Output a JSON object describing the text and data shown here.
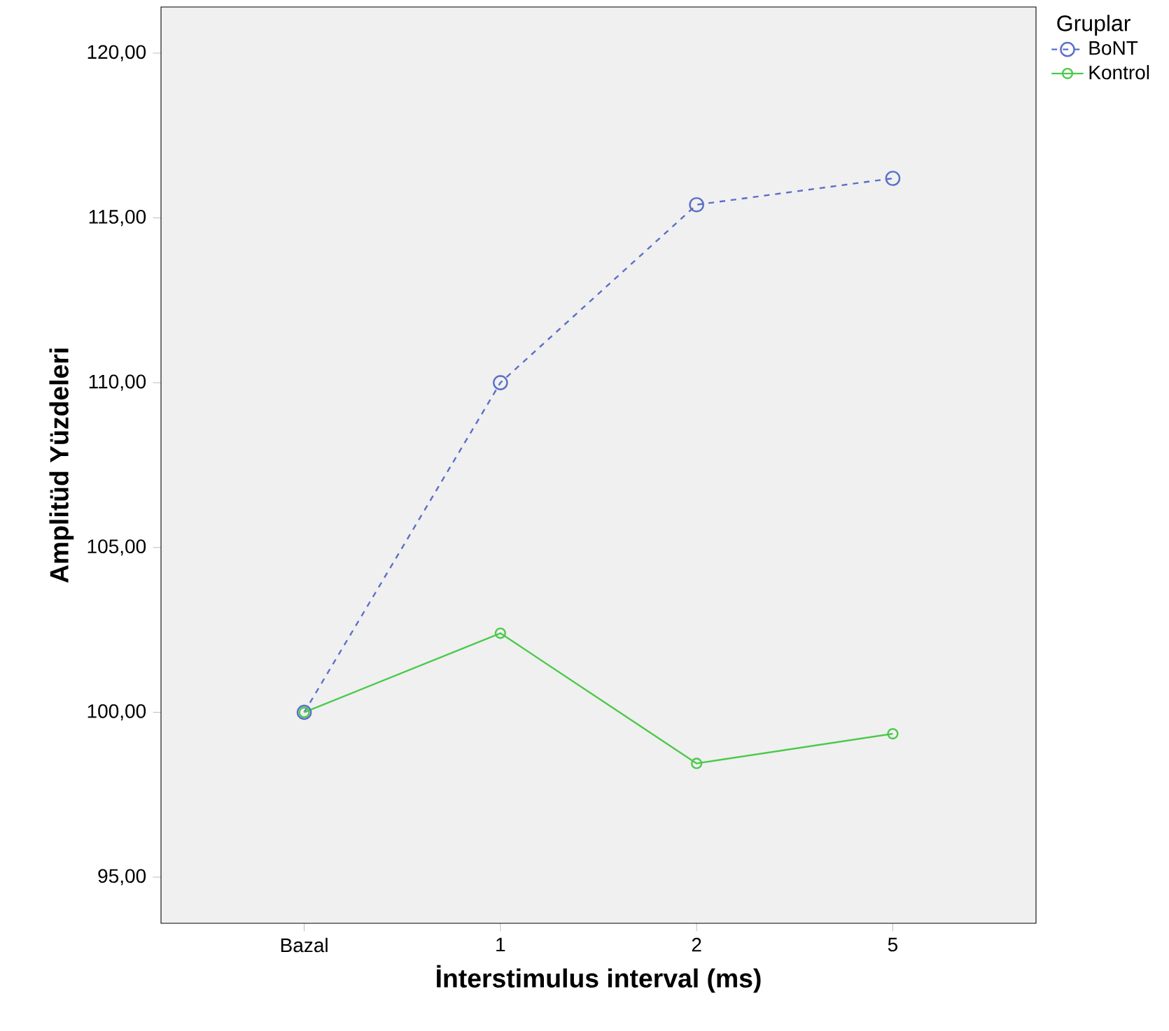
{
  "chart_data": {
    "type": "line",
    "xlabel": "İnterstimulus interval (ms)",
    "ylabel": "Amplitüd Yüzdeleri",
    "legend_title": "Gruplar",
    "categories": [
      "Bazal",
      "1",
      "2",
      "5"
    ],
    "series": [
      {
        "name": "BoNT",
        "color": "#5b6fc9",
        "line_style": "dashed",
        "values": [
          100,
          110,
          115.4,
          116.2
        ]
      },
      {
        "name": "Kontrol",
        "color": "#4cc94c",
        "line_style": "solid",
        "values": [
          100,
          102.4,
          98.45,
          99.35
        ]
      }
    ],
    "ylim": [
      93.6,
      121.4
    ],
    "yticks": [
      {
        "value": 95,
        "label": "95,00"
      },
      {
        "value": 100,
        "label": "100,00"
      },
      {
        "value": 105,
        "label": "105,00"
      },
      {
        "value": 110,
        "label": "110,00"
      },
      {
        "value": 115,
        "label": "115,00"
      },
      {
        "value": 120,
        "label": "120,00"
      }
    ],
    "marker": "circle",
    "grid": false,
    "legend": "top right"
  }
}
